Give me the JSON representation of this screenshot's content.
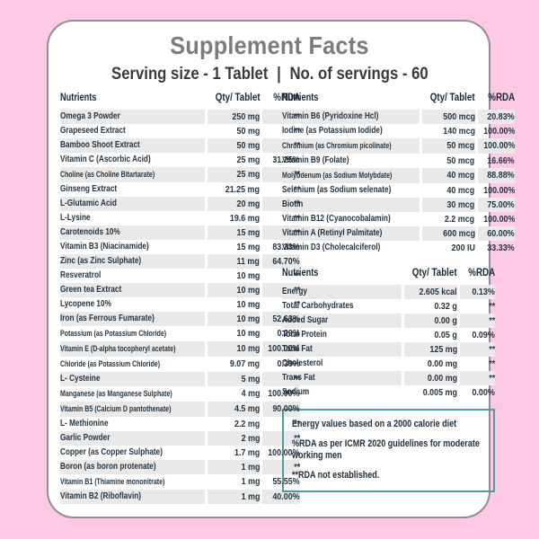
{
  "title": "Supplement Facts",
  "serving": {
    "size_label": "Serving size - 1 Tablet",
    "separator": "|",
    "count_label": "No. of servings - 60"
  },
  "tables": {
    "left": {
      "headers": {
        "name": "Nutrients",
        "qty": "Qty/ Tablet",
        "rda": "%RDA"
      },
      "rows": [
        {
          "name": "Omega 3 Powder",
          "qty": "250 mg",
          "rda": "**"
        },
        {
          "name": "Grapeseed Extract",
          "qty": "50 mg",
          "rda": "**"
        },
        {
          "name": "Bamboo Shoot Extract",
          "qty": "50 mg",
          "rda": "**"
        },
        {
          "name": "Vitamin C (Ascorbic Acid)",
          "qty": "25 mg",
          "rda": "31.25%"
        },
        {
          "name": "Choline (as Choline Bitartarate)",
          "qty": "25 mg",
          "rda": "**"
        },
        {
          "name": "Ginseng Extract",
          "qty": "21.25 mg",
          "rda": "**"
        },
        {
          "name": "L-Glutamic Acid",
          "qty": "20 mg",
          "rda": "**"
        },
        {
          "name": "L-Lysine",
          "qty": "19.6 mg",
          "rda": "**"
        },
        {
          "name": "Carotenoids 10%",
          "qty": "15 mg",
          "rda": "**"
        },
        {
          "name": "Vitamin B3 (Niacinamide)",
          "qty": "15 mg",
          "rda": "83.33%"
        },
        {
          "name": "Zinc (as Zinc Sulphate)",
          "qty": "11 mg",
          "rda": "64.70%"
        },
        {
          "name": "Resveratrol",
          "qty": "10 mg",
          "rda": "**"
        },
        {
          "name": "Green tea Extract",
          "qty": "10 mg",
          "rda": "**"
        },
        {
          "name": "Lycopene 10%",
          "qty": "10 mg",
          "rda": "**"
        },
        {
          "name": "Iron (as Ferrous Fumarate)",
          "qty": "10 mg",
          "rda": "52.63%"
        },
        {
          "name": "Potassium (as Potassium Chloride)",
          "qty": "10 mg",
          "rda": "0.29%"
        },
        {
          "name": "Vitamin E (D-alpha tocopheryl acetate)",
          "qty": "10 mg",
          "rda": "100.00%"
        },
        {
          "name": "Chloride (as Potassium Chloride)",
          "qty": "9.07 mg",
          "rda": "0.39%"
        },
        {
          "name": "L- Cysteine",
          "qty": "5 mg",
          "rda": "**"
        },
        {
          "name": "Manganese (as Manganese Sulphate)",
          "qty": "4 mg",
          "rda": "100.00%"
        },
        {
          "name": "Vitamin B5 (Calcium D pantothenate)",
          "qty": "4.5 mg",
          "rda": "90.00%"
        },
        {
          "name": "L- Methionine",
          "qty": "2.2 mg",
          "rda": "**"
        },
        {
          "name": "Garlic Powder",
          "qty": "2 mg",
          "rda": "**"
        },
        {
          "name": "Copper (as Copper Sulphate)",
          "qty": "1.7 mg",
          "rda": "100.00%"
        },
        {
          "name": "Boron (as boron protenate)",
          "qty": "1 mg",
          "rda": "**"
        },
        {
          "name": "Vitamin B1 (Thiamine mononitrate)",
          "qty": "1 mg",
          "rda": "55.55%"
        },
        {
          "name": "Vitamin B2 (Riboflavin)",
          "qty": "1 mg",
          "rda": "40.00%"
        }
      ]
    },
    "vitamins": {
      "headers": {
        "name": "Nutrients",
        "qty": "Qty/ Tablet",
        "rda": "%RDA"
      },
      "rows": [
        {
          "name": "Vitamin B6 (Pyridoxine Hcl)",
          "qty": "500 mcg",
          "rda": "20.83%"
        },
        {
          "name": "Iodine (as Potassium Iodide)",
          "qty": "140 mcg",
          "rda": "100.00%"
        },
        {
          "name": "Chromium (as Chromium picolinate)",
          "qty": "50 mcg",
          "rda": "100.00%"
        },
        {
          "name": "Vitamin B9 (Folate)",
          "qty": "50 mcg",
          "rda": "16.66%"
        },
        {
          "name": "Molybdenum (as Sodium Molybdate)",
          "qty": "40 mcg",
          "rda": "88.88%"
        },
        {
          "name": "Selenium (as Sodium selenate)",
          "qty": "40 mcg",
          "rda": "100.00%"
        },
        {
          "name": "Biotin",
          "qty": "30 mcg",
          "rda": "75.00%"
        },
        {
          "name": "Vitamin B12 (Cyanocobalamin)",
          "qty": "2.2 mcg",
          "rda": "100.00%"
        },
        {
          "name": "Vitamin A (Retinyl Palmitate)",
          "qty": "600 mcg",
          "rda": "60.00%"
        },
        {
          "name": "Vitamin D3 (Cholecalciferol)",
          "qty": "200 IU",
          "rda": "33.33%"
        }
      ]
    },
    "macros": {
      "headers": {
        "name": "Nutrients",
        "qty": "Qty/ Tablet",
        "rda": "%RDA"
      },
      "rows": [
        {
          "name": "Energy",
          "qty": "2.605 kcal",
          "rda": "0.13%"
        },
        {
          "name": "Total Carbohydrates",
          "qty": "0.32 g",
          "rda": "**"
        },
        {
          "name": "Added Sugar",
          "qty": "0.00 g",
          "rda": "**"
        },
        {
          "name": "Total Protein",
          "qty": "0.05 g",
          "rda": "0.09%"
        },
        {
          "name": "Total Fat",
          "qty": "125 mg",
          "rda": "**"
        },
        {
          "name": "Cholesterol",
          "qty": "0.00 mg",
          "rda": "**"
        },
        {
          "name": "Trans Fat",
          "qty": "0.00 mg",
          "rda": "**"
        },
        {
          "name": "Sodium",
          "qty": "0.005 mg",
          "rda": "0.00%"
        }
      ]
    }
  },
  "footnotes": [
    "Energy values based on a 2000 calorie diet",
    "%RDA as per ICMR 2020 guidelines for moderate working men",
    "**RDA not established."
  ],
  "colors": {
    "background_pink": "#fec9e3",
    "card_white": "#ffffff",
    "card_border_gray": "#8f8f8f",
    "title_gray": "#7c7c7c",
    "text_navy": "#243442",
    "stripe_gray": "#e9e9e9",
    "notes_border_teal": "#4d9ca3"
  }
}
